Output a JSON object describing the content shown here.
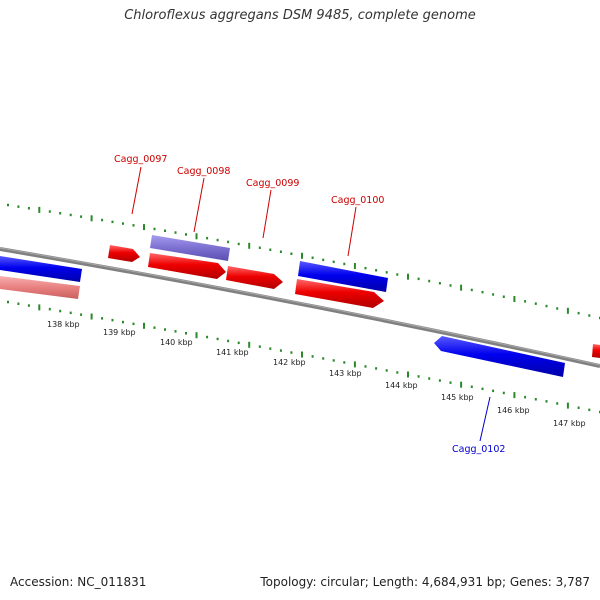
{
  "title": "Chloroflexus aggregans DSM 9485, complete genome",
  "footer": {
    "accession": "Accession: NC_011831",
    "summary": "Topology: circular; Length: 4,684,931 bp; Genes: 3,787"
  },
  "scale_labels": [
    "138 kbp",
    "139 kbp",
    "140 kbp",
    "141 kbp",
    "142 kbp",
    "143 kbp",
    "144 kbp",
    "145 kbp",
    "146 kbp",
    "147 kbp"
  ],
  "gene_labels": [
    {
      "text": "Cagg_0097",
      "color": "#cc0000"
    },
    {
      "text": "Cagg_0098",
      "color": "#cc0000"
    },
    {
      "text": "Cagg_0099",
      "color": "#cc0000"
    },
    {
      "text": "Cagg_0100",
      "color": "#cc0000"
    },
    {
      "text": "Cagg_0102",
      "color": "#0000cc"
    }
  ],
  "colors": {
    "forward_cds": "#ee0000",
    "reverse_cds": "#0000ee",
    "purple_feature": "#7b6fd0",
    "pink_feature": "#e88080",
    "backbone": "#808080",
    "tick": "#2a8a2a"
  }
}
